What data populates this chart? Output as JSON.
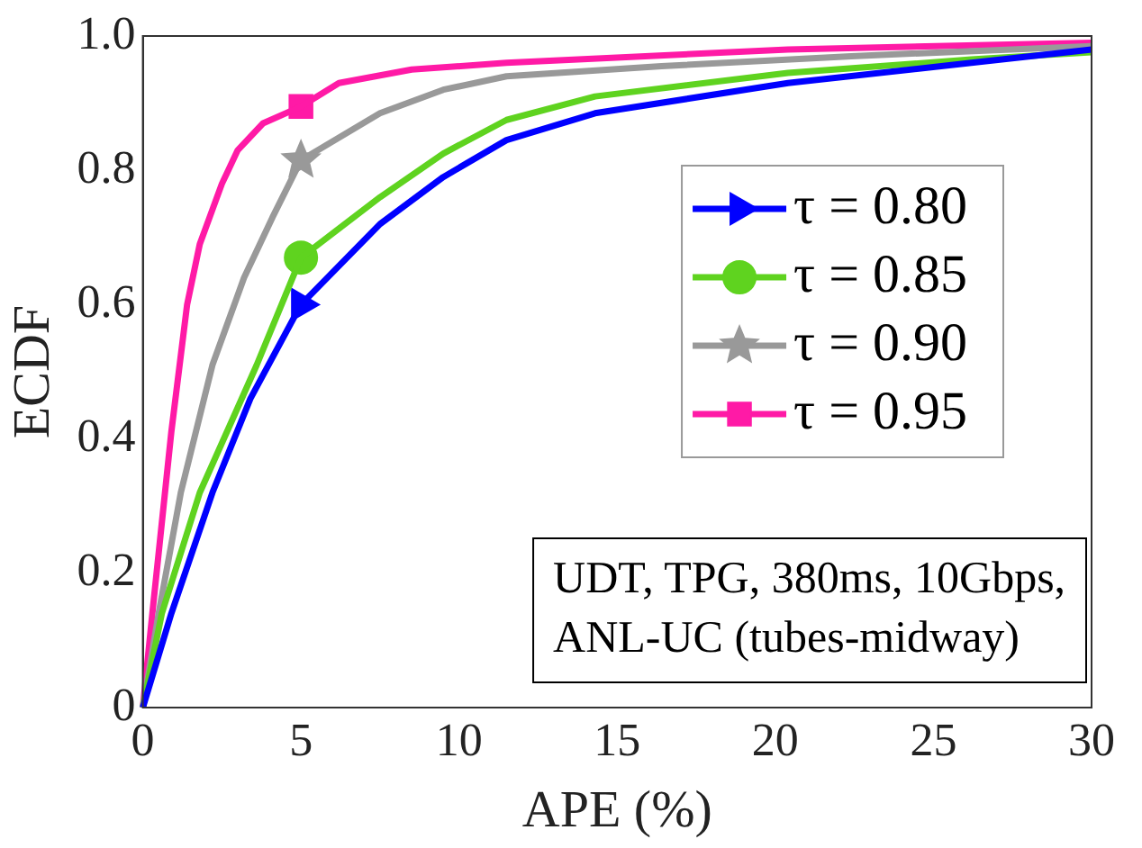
{
  "chart_data": {
    "type": "line",
    "xlabel": "APE (%)",
    "ylabel": "ECDF",
    "xlim": [
      0,
      30
    ],
    "ylim": [
      0,
      1
    ],
    "xticks": [
      0,
      5,
      10,
      15,
      20,
      25,
      30
    ],
    "yticks": [
      0,
      0.2,
      0.4,
      0.6,
      0.8,
      {
        "value": 1,
        "label": "1.0"
      }
    ],
    "grid": false,
    "legend": "top right",
    "line_style": "solid",
    "annotations": [
      "UDT, TPG, 380ms, 10Gbps, ANL-UC (tubes-midway)"
    ],
    "series": [
      {
        "color": "#0000ff",
        "x": [
          0,
          0.9,
          2.2,
          3.4,
          5,
          7.5,
          9.5,
          11.5,
          14.3,
          20.4,
          26.2,
          30
        ],
        "values": [
          0,
          0.14,
          0.32,
          0.46,
          0.6,
          0.72,
          0.79,
          0.845,
          0.885,
          0.93,
          0.96,
          0.98
        ]
      },
      {
        "color": "#5fd31f",
        "x": [
          0,
          0.6,
          1.8,
          3.6,
          5,
          7.5,
          9.5,
          11.5,
          14.3,
          20.4,
          26.2,
          30
        ],
        "values": [
          0,
          0.14,
          0.32,
          0.51,
          0.67,
          0.76,
          0.825,
          0.875,
          0.91,
          0.945,
          0.965,
          0.976
        ]
      },
      {
        "color": "#999999",
        "x": [
          0,
          0.5,
          1.2,
          2.2,
          3.2,
          4.1,
          5,
          7.5,
          9.5,
          11.5,
          16.4,
          22.4,
          30
        ],
        "values": [
          0,
          0.14,
          0.32,
          0.51,
          0.64,
          0.73,
          0.815,
          0.885,
          0.92,
          0.94,
          0.955,
          0.97,
          0.985
        ]
      },
      {
        "color": "#ff1aa6",
        "x": [
          0,
          0.3,
          0.9,
          1.4,
          1.8,
          2.5,
          3,
          3.8,
          5,
          6.2,
          8.5,
          11.5,
          20.4,
          30
        ],
        "values": [
          0,
          0.14,
          0.41,
          0.6,
          0.69,
          0.78,
          0.83,
          0.87,
          0.895,
          0.93,
          0.95,
          0.96,
          0.98,
          0.99
        ]
      },
      {
        "type": "scatter",
        "name": "τ = 0.80",
        "color": "#0000ff",
        "marker": "triangle",
        "x": [
          5
        ],
        "values": [
          0.6
        ]
      },
      {
        "type": "scatter",
        "name": "τ = 0.85",
        "color": "#5fd31f",
        "marker": "circle",
        "x": [
          5
        ],
        "values": [
          0.67
        ]
      },
      {
        "type": "scatter",
        "name": "τ = 0.90",
        "color": "#999999",
        "marker": "star",
        "x": [
          5
        ],
        "values": [
          0.815
        ]
      },
      {
        "type": "scatter",
        "name": "τ = 0.95",
        "color": "#ff1aa6",
        "marker": "square",
        "x": [
          5
        ],
        "values": [
          0.895
        ]
      }
    ]
  }
}
